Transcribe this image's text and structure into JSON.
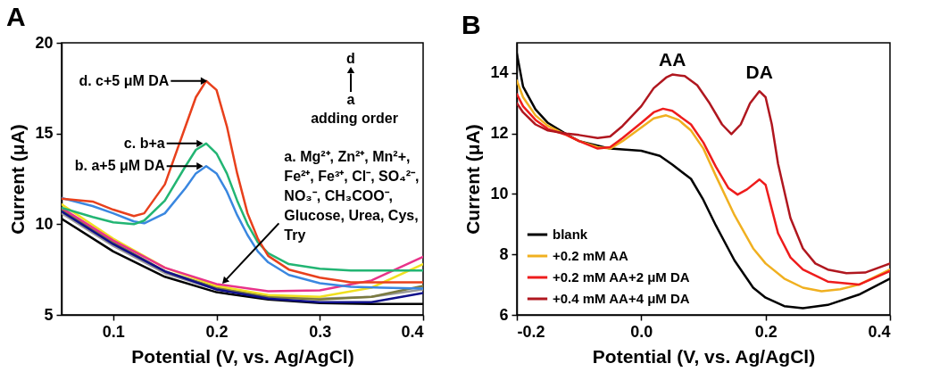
{
  "chart_data": [
    {
      "type": "line",
      "title": "A",
      "xlabel": "Potential (V, vs. Ag/AgCl)",
      "ylabel": "Current (μA)",
      "xlim": [
        0.05,
        0.4
      ],
      "xticks": [
        0.1,
        0.2,
        0.3,
        0.4
      ],
      "ylim": [
        5,
        20
      ],
      "yticks": [
        5,
        10,
        15,
        20
      ],
      "grid": false,
      "legend": false,
      "x": [
        0.05,
        0.08,
        0.1,
        0.12,
        0.13,
        0.15,
        0.17,
        0.18,
        0.19,
        0.2,
        0.21,
        0.22,
        0.23,
        0.24,
        0.25,
        0.27,
        0.3,
        0.33,
        0.36,
        0.4
      ],
      "series": [
        {
          "color": "#000000",
          "x": [
            0.05,
            0.1,
            0.15,
            0.2,
            0.25,
            0.3,
            0.35,
            0.4
          ],
          "values": [
            10.3,
            8.5,
            7.1,
            6.25,
            5.85,
            5.65,
            5.6,
            5.6
          ]
        },
        {
          "color": "#9a9a9a",
          "x": [
            0.05,
            0.1,
            0.15,
            0.2,
            0.25,
            0.3,
            0.35,
            0.4
          ],
          "values": [
            10.6,
            8.8,
            7.3,
            6.4,
            6.0,
            5.9,
            6.0,
            6.4
          ]
        },
        {
          "color": "#7a7a40",
          "x": [
            0.05,
            0.1,
            0.15,
            0.2,
            0.25,
            0.3,
            0.35,
            0.4
          ],
          "values": [
            10.8,
            9.0,
            7.4,
            6.5,
            6.0,
            5.85,
            6.0,
            6.6
          ]
        },
        {
          "color": "#10108a",
          "x": [
            0.05,
            0.1,
            0.15,
            0.2,
            0.25,
            0.3,
            0.35,
            0.4
          ],
          "values": [
            10.7,
            8.9,
            7.4,
            6.4,
            5.9,
            5.7,
            5.7,
            6.2
          ]
        },
        {
          "color": "#f0e020",
          "x": [
            0.05,
            0.1,
            0.15,
            0.2,
            0.25,
            0.3,
            0.35,
            0.4
          ],
          "values": [
            11.1,
            9.2,
            7.6,
            6.6,
            6.1,
            6.0,
            6.5,
            7.8
          ]
        },
        {
          "color": "#e8338a",
          "x": [
            0.05,
            0.1,
            0.15,
            0.2,
            0.25,
            0.3,
            0.35,
            0.4
          ],
          "values": [
            10.9,
            9.1,
            7.6,
            6.7,
            6.3,
            6.35,
            6.9,
            8.2
          ]
        },
        {
          "color": "#3a87e0",
          "values": [
            11.45,
            11.0,
            10.6,
            10.15,
            10.05,
            10.6,
            12.0,
            12.8,
            13.2,
            12.8,
            11.8,
            10.5,
            9.4,
            8.5,
            7.9,
            7.2,
            6.75,
            6.55,
            6.5,
            6.45
          ]
        },
        {
          "color": "#22b573",
          "values": [
            10.9,
            10.4,
            10.1,
            10.0,
            10.2,
            11.3,
            13.2,
            14.1,
            14.45,
            13.9,
            12.8,
            11.3,
            10.0,
            9.0,
            8.4,
            7.8,
            7.55,
            7.45,
            7.45,
            7.45
          ]
        },
        {
          "color": "#e8401c",
          "values": [
            11.4,
            11.25,
            10.8,
            10.45,
            10.6,
            12.2,
            15.4,
            17.0,
            17.9,
            17.4,
            15.4,
            12.8,
            10.6,
            9.2,
            8.25,
            7.5,
            7.05,
            6.8,
            6.8,
            6.8
          ]
        }
      ],
      "annotations": [
        {
          "text": "d. c+5 μM DA",
          "x": 0.192,
          "y": 17.9
        },
        {
          "text": "c. b+a",
          "x": 0.188,
          "y": 14.45
        },
        {
          "text": "b. a+5 μM DA",
          "x": 0.188,
          "y": 13.2
        },
        {
          "text": "a. Mg²⁺, Zn²⁺, Mn²+,\nFe²⁺, Fe³⁺, Cl⁻,  SO₄²⁻,\nNO₃⁻, CH₃COO⁻,\nGlucose, Urea, Cys,\nTry",
          "x": 0.205,
          "y": 6.7
        },
        "d",
        "a",
        "adding order"
      ]
    },
    {
      "type": "line",
      "title": "B",
      "xlabel": "Potential (V, vs. Ag/AgCl)",
      "ylabel": "Current (μA)",
      "xlim": [
        -0.2,
        0.4
      ],
      "xticks": [
        -0.2,
        {
          "value": 0,
          "label": "0.0"
        },
        0.2,
        0.4
      ],
      "ylim": [
        6,
        15
      ],
      "yticks": [
        6,
        8,
        10,
        12,
        14
      ],
      "grid": false,
      "legend": "bottom left",
      "series": [
        {
          "name": "blank",
          "color": "#000000",
          "x": [
            -0.2,
            -0.19,
            -0.17,
            -0.15,
            -0.12,
            -0.1,
            -0.05,
            0.0,
            0.03,
            0.05,
            0.08,
            0.1,
            0.12,
            0.15,
            0.18,
            0.2,
            0.23,
            0.26,
            0.3,
            0.35,
            0.4
          ],
          "values": [
            14.65,
            13.55,
            12.8,
            12.35,
            11.97,
            11.75,
            11.5,
            11.43,
            11.26,
            10.97,
            10.5,
            9.8,
            8.96,
            7.8,
            6.9,
            6.57,
            6.29,
            6.22,
            6.33,
            6.67,
            7.2
          ]
        },
        {
          "name": "+0.2 mM AA",
          "color": "#f0b020",
          "x": [
            -0.2,
            -0.19,
            -0.17,
            -0.15,
            -0.12,
            -0.1,
            -0.07,
            -0.05,
            -0.03,
            0.0,
            0.02,
            0.04,
            0.06,
            0.08,
            0.1,
            0.12,
            0.15,
            0.18,
            0.2,
            0.23,
            0.26,
            0.29,
            0.32,
            0.35,
            0.4
          ],
          "values": [
            13.75,
            13.2,
            12.6,
            12.25,
            11.95,
            11.75,
            11.55,
            11.5,
            11.75,
            12.2,
            12.5,
            12.6,
            12.45,
            12.1,
            11.5,
            10.6,
            9.3,
            8.2,
            7.7,
            7.2,
            6.9,
            6.78,
            6.85,
            7.0,
            7.5
          ]
        },
        {
          "name": "+0.2 mM AA+2 μM DA",
          "color": "#ee1c1c",
          "x": [
            -0.2,
            -0.19,
            -0.17,
            -0.15,
            -0.12,
            -0.1,
            -0.07,
            -0.05,
            -0.03,
            0.0,
            0.02,
            0.035,
            0.05,
            0.08,
            0.1,
            0.12,
            0.14,
            0.155,
            0.17,
            0.19,
            0.2,
            0.21,
            0.22,
            0.24,
            0.26,
            0.3,
            0.35,
            0.4
          ],
          "values": [
            13.3,
            12.9,
            12.45,
            12.15,
            11.95,
            11.75,
            11.5,
            11.55,
            11.85,
            12.35,
            12.7,
            12.82,
            12.75,
            12.3,
            11.7,
            10.9,
            10.2,
            9.98,
            10.15,
            10.48,
            10.3,
            9.5,
            8.7,
            7.9,
            7.5,
            7.1,
            7.0,
            7.45
          ]
        },
        {
          "name": "+0.4 mM AA+4 μM DA",
          "color": "#b0171f",
          "x": [
            -0.2,
            -0.19,
            -0.17,
            -0.15,
            -0.12,
            -0.1,
            -0.07,
            -0.05,
            -0.03,
            0.0,
            0.02,
            0.04,
            0.05,
            0.07,
            0.09,
            0.11,
            0.13,
            0.145,
            0.16,
            0.175,
            0.19,
            0.2,
            0.21,
            0.22,
            0.24,
            0.26,
            0.28,
            0.3,
            0.33,
            0.36,
            0.4
          ],
          "values": [
            13.0,
            12.7,
            12.3,
            12.1,
            12.0,
            11.95,
            11.85,
            11.9,
            12.25,
            12.9,
            13.5,
            13.85,
            13.95,
            13.9,
            13.6,
            13.0,
            12.3,
            11.98,
            12.3,
            13.0,
            13.4,
            13.2,
            12.3,
            11.0,
            9.2,
            8.2,
            7.7,
            7.5,
            7.38,
            7.4,
            7.7
          ]
        }
      ],
      "annotations": [
        {
          "text": "AA",
          "x": 0.05,
          "y": 13.95
        },
        {
          "text": "DA",
          "x": 0.19,
          "y": 13.4
        }
      ]
    }
  ]
}
